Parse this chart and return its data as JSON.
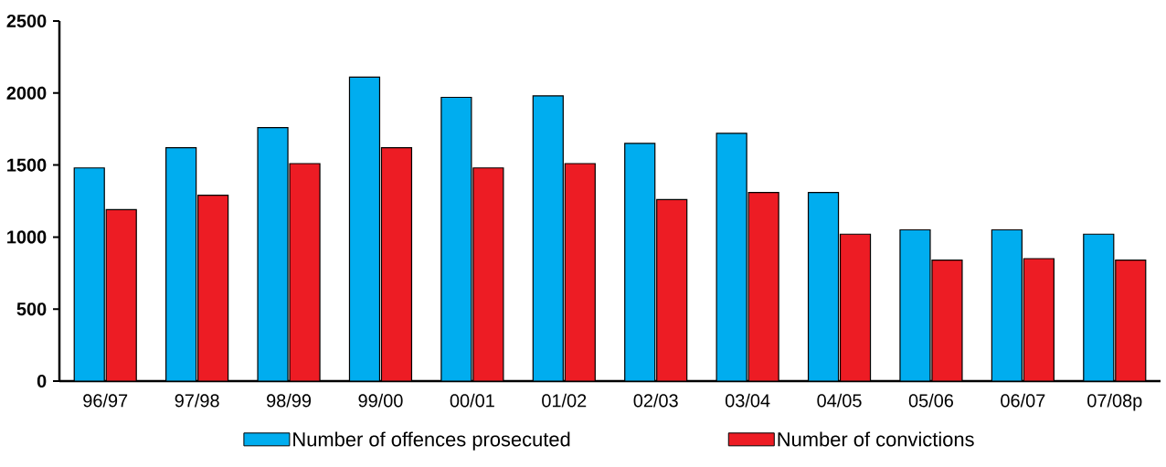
{
  "chart_data": {
    "type": "bar",
    "categories": [
      "96/97",
      "97/98",
      "98/99",
      "99/00",
      "00/01",
      "01/02",
      "02/03",
      "03/04",
      "04/05",
      "05/06",
      "06/07",
      "07/08p"
    ],
    "series": [
      {
        "name": "Number of offences prosecuted",
        "color": "#00adef",
        "values": [
          1480,
          1620,
          1760,
          2110,
          1970,
          1980,
          1650,
          1720,
          1310,
          1050,
          1050,
          1020
        ]
      },
      {
        "name": "Number of convictions",
        "color": "#ed1c24",
        "values": [
          1190,
          1290,
          1510,
          1620,
          1480,
          1510,
          1260,
          1310,
          1020,
          840,
          850,
          840
        ]
      }
    ],
    "ylim": [
      0,
      2500
    ],
    "yticks": [
      0,
      500,
      1000,
      1500,
      2000,
      2500
    ],
    "grid": false,
    "legend": "bottom"
  }
}
